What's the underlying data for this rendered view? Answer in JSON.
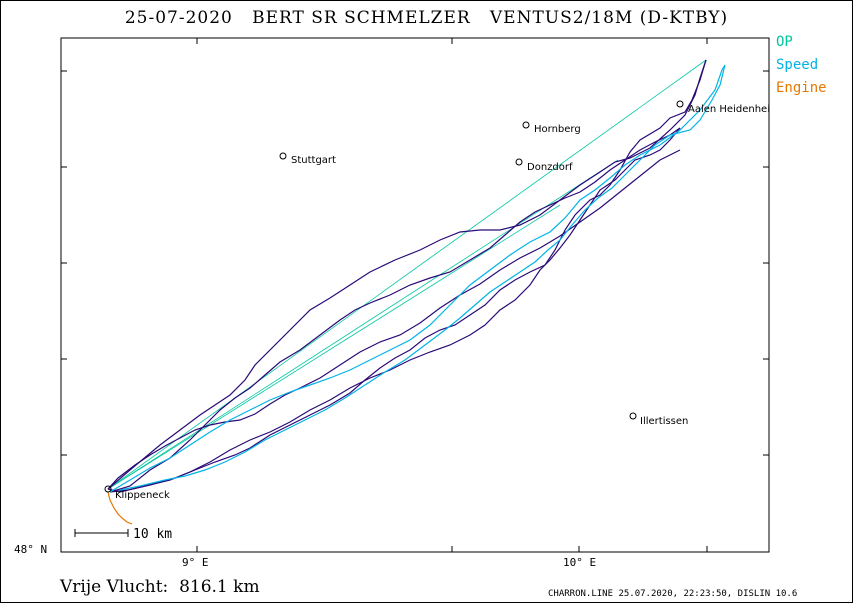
{
  "title": "25-07-2020   BERT SR SCHMELZER   VENTUS2/18M (D-KTBY)",
  "legend": {
    "items": [
      {
        "label": "OP",
        "color": "#00c8a0"
      },
      {
        "label": "Speed",
        "color": "#00b4e6"
      },
      {
        "label": "Engine",
        "color": "#e67800"
      }
    ]
  },
  "places": [
    {
      "name": "Stuttgart"
    },
    {
      "name": "Hornberg"
    },
    {
      "name": "Donzdorf"
    },
    {
      "name": "Aalen Heidenheim"
    },
    {
      "name": "Illertissen"
    },
    {
      "name": "Klippeneck"
    }
  ],
  "axes": {
    "lat_label": "48° N",
    "lon_ticks": [
      "9° E",
      "10° E"
    ]
  },
  "scale_label": "10 km",
  "flight_distance": "Vrije Vlucht:  816.1 km",
  "footer": "CHARRON.LINE 25.07.2020, 22:23:50, DISLIN 10.6",
  "colors": {
    "track": "#2a0a78",
    "speed": "#00b4e6",
    "op": "#00c8a0",
    "engine": "#e67800"
  }
}
